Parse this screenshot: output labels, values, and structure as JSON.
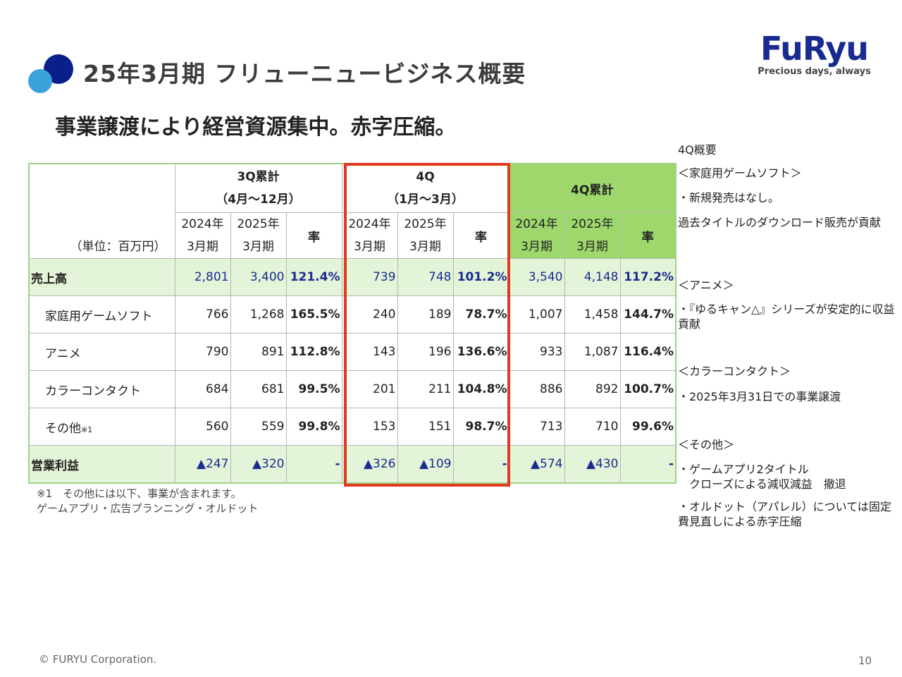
{
  "title": "25年3月期 フリューニュービジネス概要",
  "subtitle": "事業譲渡により経営資源集中。赤字圧縮。",
  "logo": {
    "word": "FuRyu",
    "tagline": "Precious days, always"
  },
  "table": {
    "unit": "（単位：百万円）",
    "groups": [
      {
        "line1": "3Q累計",
        "line2": "（4月～12月）"
      },
      {
        "line1": "4Q",
        "line2": "（1月～3月）"
      },
      {
        "line1": "4Q累計",
        "line2": ""
      }
    ],
    "col_y1_line1": "2024年",
    "col_y1_line2": "3月期",
    "col_y2_line1": "2025年",
    "col_y2_line2": "3月期",
    "col_rate": "率",
    "rows": [
      {
        "label": "売上高",
        "cells": [
          "2,801",
          "3,400",
          "121.4%",
          "739",
          "748",
          "101.2%",
          "3,540",
          "4,148",
          "117.2%"
        ]
      },
      {
        "label": "家庭用ゲームソフト",
        "cells": [
          "766",
          "1,268",
          "165.5%",
          "240",
          "189",
          "78.7%",
          "1,007",
          "1,458",
          "144.7%"
        ]
      },
      {
        "label": "アニメ",
        "cells": [
          "790",
          "891",
          "112.8%",
          "143",
          "196",
          "136.6%",
          "933",
          "1,087",
          "116.4%"
        ]
      },
      {
        "label": "カラーコンタクト",
        "cells": [
          "684",
          "681",
          "99.5%",
          "201",
          "211",
          "104.8%",
          "886",
          "892",
          "100.7%"
        ]
      },
      {
        "label": "その他",
        "note": "※1",
        "cells": [
          "560",
          "559",
          "99.8%",
          "153",
          "151",
          "98.7%",
          "713",
          "710",
          "99.6%"
        ]
      },
      {
        "label": "営業利益",
        "cells": [
          "▲247",
          "▲320",
          "-",
          "▲326",
          "▲109",
          "-",
          "▲574",
          "▲430",
          "-"
        ]
      }
    ]
  },
  "footnote": {
    "line1": "※1　その他には以下、事業が含まれます。",
    "line2": "ゲームアプリ・広告プランニング・オルドット"
  },
  "side": {
    "heading": "4Q概要",
    "game_header": "＜家庭用ゲームソフト＞",
    "game_b1": "・新規発売はなし。",
    "game_b2": "過去タイトルのダウンロード販売が貢献",
    "anime_header": "＜アニメ＞",
    "anime_b1": "・『ゆるキャン△』シリーズが安定的に収益貢献",
    "cc_header": "＜カラーコンタクト＞",
    "cc_b1": "・2025年3月31日での事業譲渡",
    "other_header": "＜その他＞",
    "other_b1_l1": "・ゲームアプリ2タイトル",
    "other_b1_l2": "　クローズによる減収減益　撤退",
    "other_b2": "・オルドット（アパレル）については固定費見直しによる赤字圧縮"
  },
  "footer": {
    "copyright": "© FURYU Corporation.",
    "page": "10"
  }
}
